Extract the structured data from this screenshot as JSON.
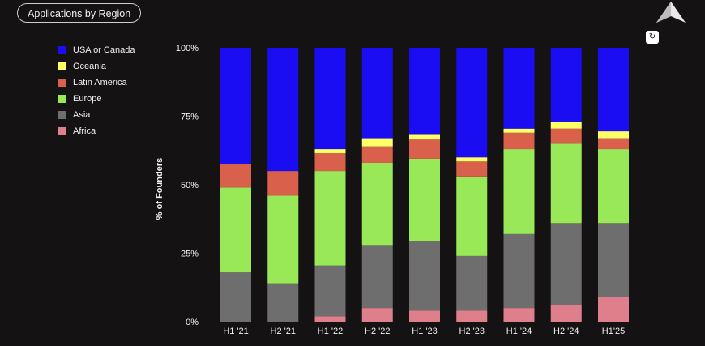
{
  "header": {
    "title": "Applications by Region"
  },
  "icons": {
    "logo": "triangle-logo-icon",
    "refresh": "refresh-icon",
    "refresh_glyph": "↻"
  },
  "chart_data": {
    "type": "bar",
    "stacked": true,
    "title": "Applications by Region",
    "xlabel": "",
    "ylabel": "% of Founders",
    "ylim": [
      0,
      100
    ],
    "yticks": [
      "0%",
      "25%",
      "50%",
      "75%",
      "100%"
    ],
    "categories": [
      "H1 '21",
      "H2 '21",
      "H1 '22",
      "H2 '22",
      "H1 '23",
      "H2 '23",
      "H1 '24",
      "H2 '24",
      "H1'25"
    ],
    "legend_position": "left",
    "series": [
      {
        "name": "Africa",
        "color": "#e07f8c",
        "values": [
          0,
          0,
          2,
          5,
          4,
          4,
          5,
          6,
          9
        ]
      },
      {
        "name": "Asia",
        "color": "#6e6e6e",
        "values": [
          18,
          14,
          18.5,
          23,
          25.5,
          20,
          27,
          30,
          27
        ]
      },
      {
        "name": "Europe",
        "color": "#99e858",
        "values": [
          31,
          32,
          34.5,
          30,
          30,
          29,
          31,
          29,
          27
        ]
      },
      {
        "name": "Latin America",
        "color": "#d9604a",
        "values": [
          8.5,
          9,
          6.5,
          6,
          7,
          5.5,
          6,
          5.5,
          4
        ]
      },
      {
        "name": "Oceania",
        "color": "#ffff66",
        "values": [
          0,
          0,
          1.5,
          3,
          2,
          1.5,
          1.5,
          2.5,
          2.5
        ]
      },
      {
        "name": "USA or Canada",
        "color": "#1a0df2",
        "values": [
          42.5,
          45,
          37,
          33,
          31.5,
          40,
          29.5,
          27,
          30.5
        ]
      }
    ],
    "legend_order": [
      "USA or Canada",
      "Oceania",
      "Latin America",
      "Europe",
      "Asia",
      "Africa"
    ]
  }
}
